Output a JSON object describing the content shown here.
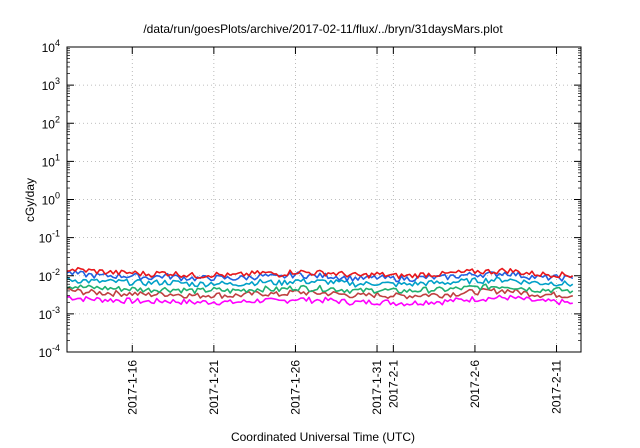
{
  "chart_data": {
    "type": "line",
    "title": "/data/run/goesPlots/archive/2017-02-11/flux/../bryn/31daysMars.plot",
    "xlabel": "Coordinated Universal Time (UTC)",
    "ylabel": "cGy/day",
    "yscale": "log",
    "ylim": [
      0.0001,
      10000
    ],
    "xlim": [
      "2017-01-12",
      "2017-02-12 12:00"
    ],
    "grid": true,
    "legend": "none",
    "x_ticks": [
      {
        "date": "2017-01-16",
        "label": "2017-1-16"
      },
      {
        "date": "2017-01-21",
        "label": "2017-1-21"
      },
      {
        "date": "2017-01-26",
        "label": "2017-1-26"
      },
      {
        "date": "2017-01-31",
        "label": "2017-1-31"
      },
      {
        "date": "2017-02-01",
        "label": "2017-2-1"
      },
      {
        "date": "2017-02-06",
        "label": "2017-2-6"
      },
      {
        "date": "2017-02-11",
        "label": "2017-2-11"
      }
    ],
    "y_ticks": [
      {
        "value": 0.0001,
        "base": "10",
        "exp": "-4"
      },
      {
        "value": 0.001,
        "base": "10",
        "exp": "-3"
      },
      {
        "value": 0.01,
        "base": "10",
        "exp": "-2"
      },
      {
        "value": 0.1,
        "base": "10",
        "exp": "-1"
      },
      {
        "value": 1,
        "base": "10",
        "exp": "0"
      },
      {
        "value": 10,
        "base": "10",
        "exp": "1"
      },
      {
        "value": 100,
        "base": "10",
        "exp": "2"
      },
      {
        "value": 1000,
        "base": "10",
        "exp": "3"
      },
      {
        "value": 10000,
        "base": "10",
        "exp": "4"
      }
    ],
    "x": [
      "2017-01-12",
      "2017-01-13",
      "2017-01-14",
      "2017-01-15",
      "2017-01-16",
      "2017-01-17",
      "2017-01-18",
      "2017-01-19",
      "2017-01-20",
      "2017-01-21",
      "2017-01-22",
      "2017-01-23",
      "2017-01-24",
      "2017-01-25",
      "2017-01-26",
      "2017-01-27",
      "2017-01-28",
      "2017-01-29",
      "2017-01-30",
      "2017-01-31",
      "2017-02-01",
      "2017-02-02",
      "2017-02-03",
      "2017-02-04",
      "2017-02-05",
      "2017-02-06",
      "2017-02-07",
      "2017-02-08",
      "2017-02-09",
      "2017-02-10",
      "2017-02-11",
      "2017-02-12"
    ],
    "series": [
      {
        "color": "#e8161b",
        "values": [
          0.015,
          0.014,
          0.013,
          0.012,
          0.012,
          0.011,
          0.012,
          0.011,
          0.01,
          0.011,
          0.01,
          0.011,
          0.012,
          0.011,
          0.013,
          0.012,
          0.012,
          0.011,
          0.01,
          0.011,
          0.01,
          0.01,
          0.011,
          0.011,
          0.012,
          0.013,
          0.013,
          0.014,
          0.012,
          0.011,
          0.011,
          0.01
        ]
      },
      {
        "color": "#2060e0",
        "values": [
          0.012,
          0.011,
          0.01,
          0.01,
          0.01,
          0.009,
          0.01,
          0.009,
          0.0085,
          0.009,
          0.0085,
          0.009,
          0.01,
          0.009,
          0.011,
          0.01,
          0.01,
          0.009,
          0.0085,
          0.009,
          0.0085,
          0.0085,
          0.009,
          0.009,
          0.01,
          0.011,
          0.011,
          0.012,
          0.01,
          0.009,
          0.009,
          0.0085
        ]
      },
      {
        "color": "#00a0c8",
        "values": [
          0.008,
          0.0075,
          0.007,
          0.007,
          0.0068,
          0.0065,
          0.0068,
          0.0065,
          0.006,
          0.0065,
          0.006,
          0.0065,
          0.007,
          0.0065,
          0.0075,
          0.007,
          0.007,
          0.0065,
          0.006,
          0.0065,
          0.006,
          0.006,
          0.0065,
          0.0065,
          0.007,
          0.0075,
          0.0078,
          0.008,
          0.007,
          0.0065,
          0.0065,
          0.006
        ]
      },
      {
        "color": "#20b070",
        "values": [
          0.0055,
          0.005,
          0.0048,
          0.0046,
          0.0045,
          0.0043,
          0.0045,
          0.0043,
          0.004,
          0.0043,
          0.004,
          0.0043,
          0.0046,
          0.0043,
          0.005,
          0.0047,
          0.0047,
          0.0043,
          0.004,
          0.0043,
          0.004,
          0.004,
          0.0043,
          0.0043,
          0.0046,
          0.005,
          0.0052,
          0.0054,
          0.0047,
          0.0043,
          0.0043,
          0.004
        ]
      },
      {
        "color": "#c04040",
        "values": [
          0.0042,
          0.0038,
          0.0036,
          0.0035,
          0.0034,
          0.0032,
          0.0034,
          0.0032,
          0.003,
          0.0032,
          0.003,
          0.0032,
          0.0035,
          0.0032,
          0.0038,
          0.0035,
          0.0035,
          0.0032,
          0.003,
          0.0032,
          0.003,
          0.003,
          0.0032,
          0.0032,
          0.0035,
          0.0038,
          0.004,
          0.0041,
          0.0036,
          0.0032,
          0.0032,
          0.003
        ]
      },
      {
        "color": "#ff00ff",
        "values": [
          0.0028,
          0.0025,
          0.0024,
          0.0023,
          0.0022,
          0.0021,
          0.0022,
          0.0021,
          0.002,
          0.0021,
          0.002,
          0.0021,
          0.0023,
          0.0021,
          0.0025,
          0.0023,
          0.0023,
          0.0021,
          0.002,
          0.0021,
          0.002,
          0.0019,
          0.0021,
          0.0021,
          0.0023,
          0.0025,
          0.0026,
          0.0027,
          0.0024,
          0.0021,
          0.0021,
          0.0019
        ]
      }
    ]
  }
}
